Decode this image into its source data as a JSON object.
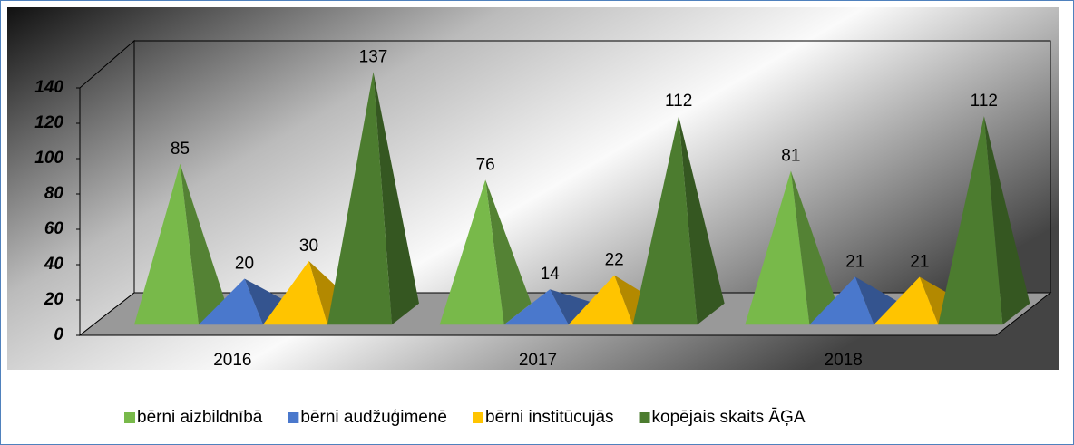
{
  "chart_data": {
    "type": "pyramid3d",
    "categories": [
      "2016",
      "2017",
      "2018"
    ],
    "series": [
      {
        "name": "bērni aizbildnībā",
        "color": "#78b94a",
        "values": [
          85,
          76,
          81
        ]
      },
      {
        "name": "bērni audžuģimenē",
        "color": "#4a78cc",
        "values": [
          20,
          14,
          21
        ]
      },
      {
        "name": "bērni institūcujās",
        "color": "#ffc400",
        "values": [
          30,
          22,
          21
        ]
      },
      {
        "name": "kopējais skaits ĀĢA",
        "color": "#4c7c2f",
        "values": [
          137,
          112,
          112
        ]
      }
    ],
    "ylim": [
      0,
      140
    ],
    "yticks": [
      0,
      20,
      40,
      60,
      80,
      100,
      120,
      140
    ],
    "legend": "bottom"
  }
}
